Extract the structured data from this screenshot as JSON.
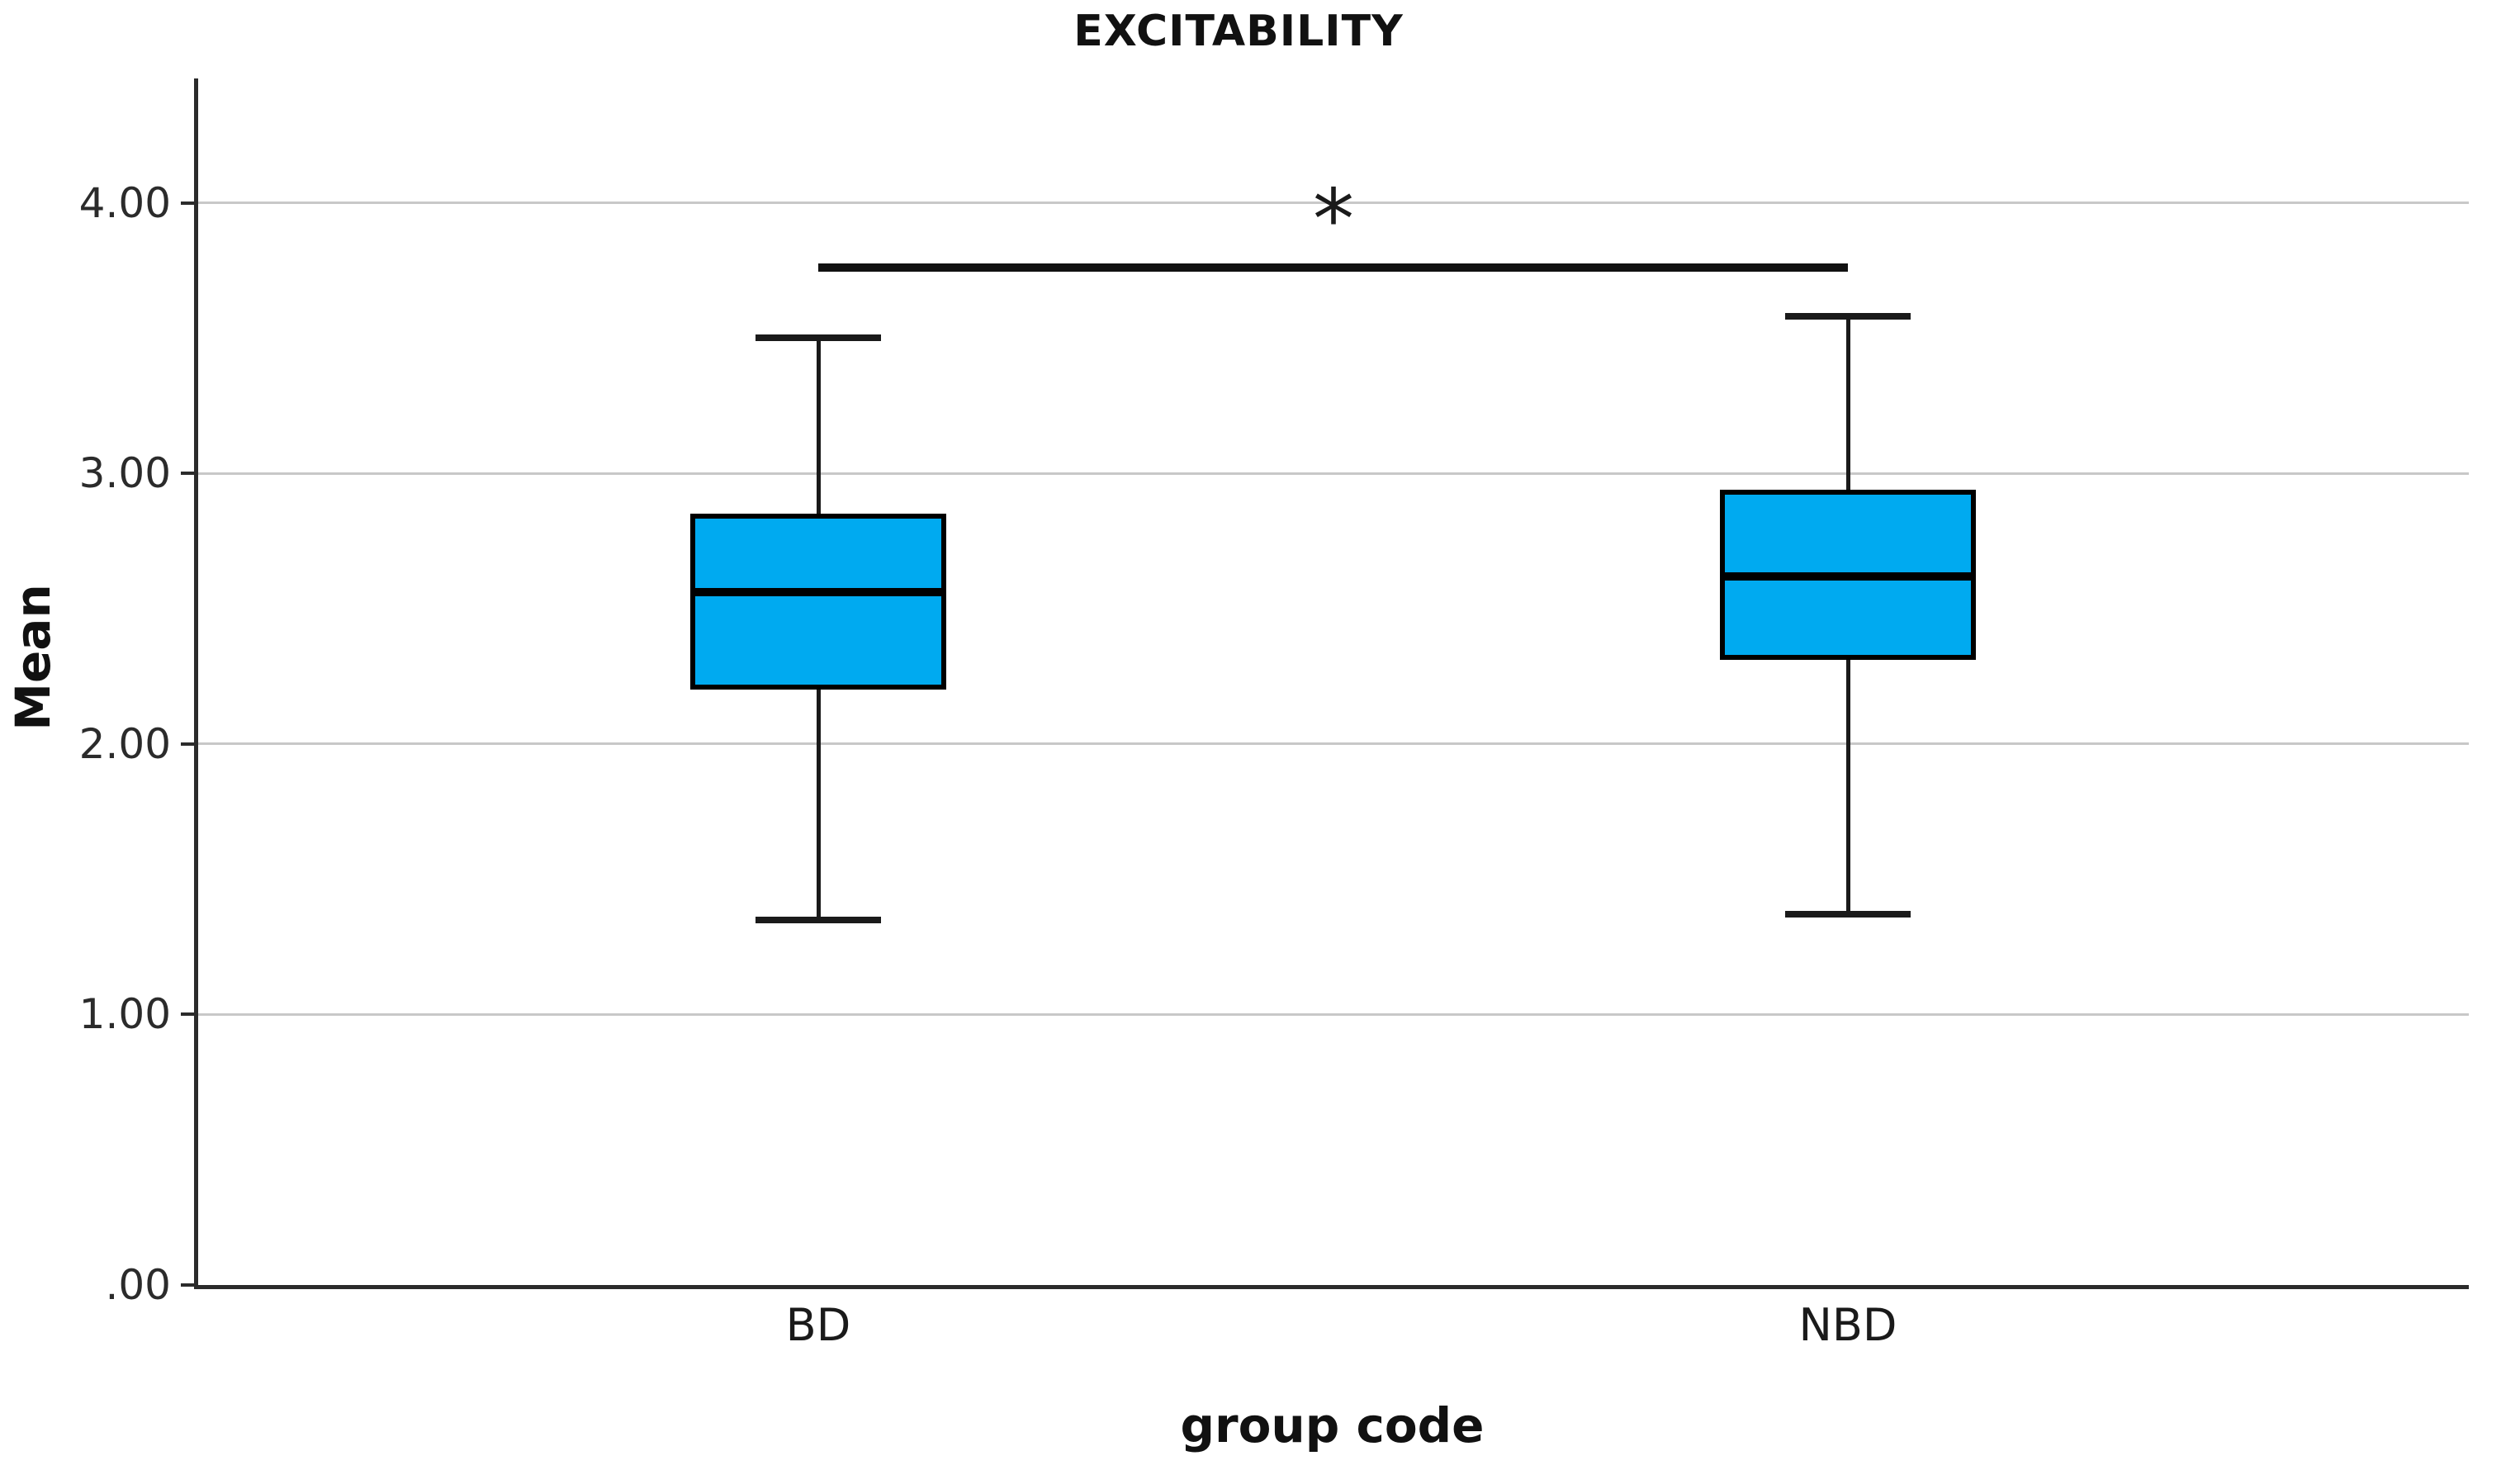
{
  "chart_data": {
    "type": "box",
    "title": "EXCITABILITY",
    "xlabel": "group code",
    "ylabel": "Mean",
    "categories": [
      "BD",
      "NBD"
    ],
    "ylim": [
      0,
      4.46
    ],
    "grid": "horizontal-only",
    "legend": "none",
    "yticks": [
      {
        "label": "4.00",
        "value": 4
      },
      {
        "label": "3.00",
        "value": 3
      },
      {
        "label": "2.00",
        "value": 2
      },
      {
        "label": "1.00",
        "value": 1
      },
      {
        "label": ".00",
        "value": 0
      }
    ],
    "series": [
      {
        "name": "BD",
        "whisker_low": 1.35,
        "q1": 2.2,
        "median": 2.56,
        "q3": 2.85,
        "whisker_high": 3.5,
        "center_frac": 0.274
      },
      {
        "name": "NBD",
        "whisker_low": 1.37,
        "q1": 2.31,
        "median": 2.62,
        "q3": 2.94,
        "whisker_high": 3.58,
        "center_frac": 0.727
      }
    ],
    "significance": {
      "label": "*",
      "bar_value": 3.76,
      "from": "BD",
      "to": "NBD"
    },
    "colors": {
      "box_fill": "#00aaf0",
      "box_border": "#000000",
      "median": "#000000",
      "whisker": "#1a1a1a",
      "grid": "#c8c8c8",
      "axis": "#2b2b2b",
      "text": "#1a1a1a"
    }
  }
}
